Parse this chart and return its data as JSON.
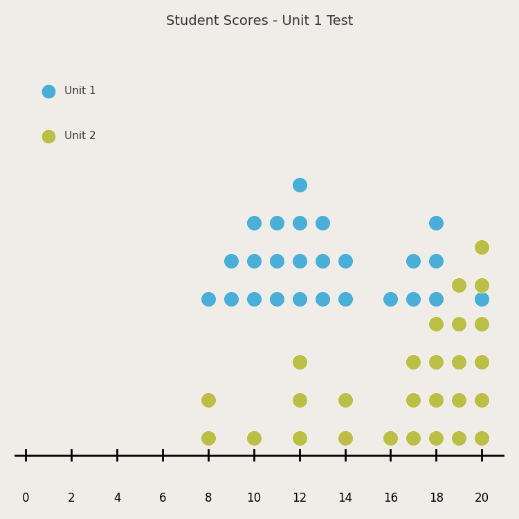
{
  "title": "Student Scores - Unit 1 Test",
  "xlabel_vals": [
    0,
    2,
    4,
    6,
    8,
    10,
    12,
    14,
    16,
    18,
    20
  ],
  "xlim": [
    -0.5,
    21
  ],
  "unit1_color": "#4BAED6",
  "unit2_color": "#BBBF48",
  "unit1_label": "Unit 1",
  "unit2_label": "Unit 2",
  "unit1_data": {
    "8": 1,
    "9": 2,
    "10": 3,
    "11": 3,
    "12": 4,
    "13": 3,
    "14": 2,
    "16": 1,
    "17": 2,
    "18": 3,
    "20": 1
  },
  "unit2_data": {
    "8": 2,
    "10": 1,
    "12": 3,
    "14": 2,
    "16": 1,
    "17": 3,
    "18": 4,
    "19": 5,
    "20": 6
  },
  "dot_size": 250,
  "title_fontsize": 14,
  "background_color": "#F0EDE8",
  "text_color": "#333333"
}
